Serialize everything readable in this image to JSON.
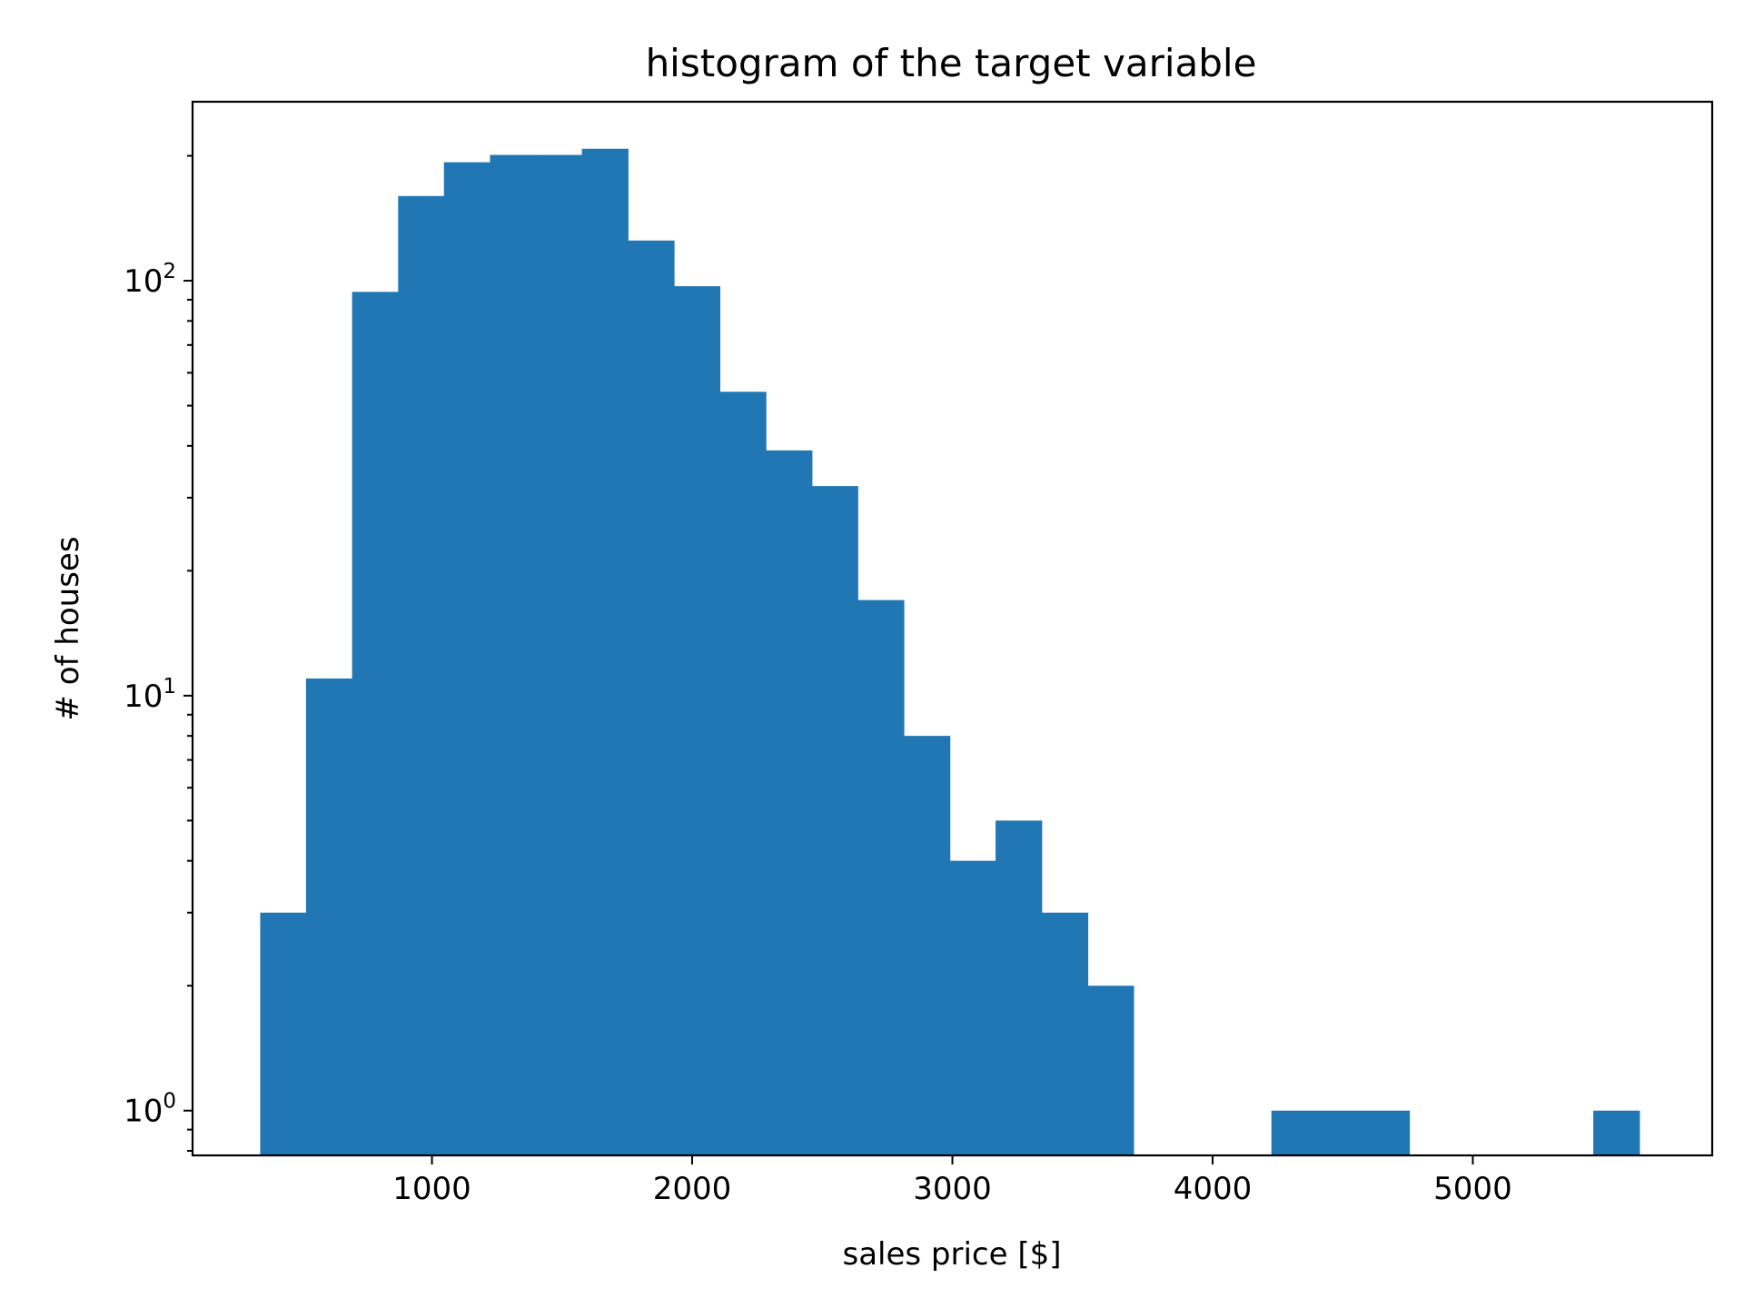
{
  "chart_data": {
    "type": "bar",
    "title": "histogram of the target variable",
    "xlabel": "sales price [$]",
    "ylabel": "# of houses",
    "yscale": "log",
    "color": "#2077b4",
    "grid": false,
    "xlim": [
      80,
      5920
    ],
    "ylim": [
      0.78,
      270
    ],
    "xticks": [
      1000,
      2000,
      3000,
      4000,
      5000
    ],
    "yticks": [
      {
        "value": 1,
        "base": "10",
        "exp": "0"
      },
      {
        "value": 10,
        "base": "10",
        "exp": "1"
      },
      {
        "value": 100,
        "base": "10",
        "exp": "2"
      }
    ],
    "bin_edges": [
      340,
      516,
      693,
      870,
      1046,
      1223,
      1400,
      1576,
      1753,
      1930,
      2106,
      2283,
      2460,
      2636,
      2813,
      2990,
      3166,
      3343,
      3520,
      3696,
      3873,
      4050,
      4226,
      4403,
      4580,
      4756,
      4933,
      5110,
      5286,
      5463,
      5640
    ],
    "counts": [
      3,
      11,
      94,
      160,
      193,
      201,
      201,
      208,
      125,
      97,
      54,
      39,
      32,
      17,
      8,
      4,
      5,
      3,
      2,
      0,
      0,
      0,
      1,
      1,
      1,
      0,
      0,
      0,
      0,
      1
    ]
  }
}
